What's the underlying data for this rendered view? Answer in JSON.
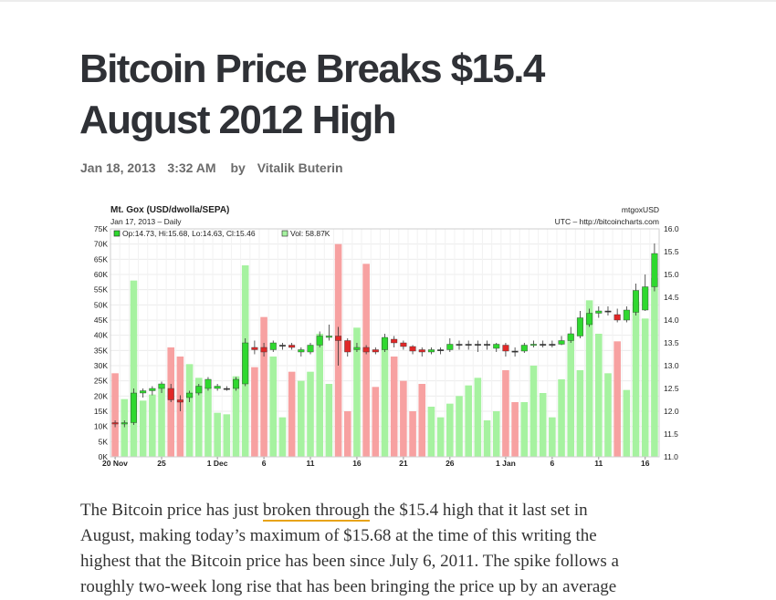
{
  "article": {
    "title_line1": "Bitcoin Price Breaks $15.4",
    "title_line2": "August 2012 High",
    "date": "Jan 18, 2013",
    "time": "3:32 AM",
    "byline_prefix": "by",
    "author": "Vitalik Buterin",
    "body": {
      "line1_before": "The Bitcoin price has just ",
      "line1_link": "broken through",
      "line1_after": " the $15.4 high that it last set in",
      "line2": "August, making today’s maximum of $15.68 at the time of this writing the",
      "line3": "highest that the Bitcoin price has been since July 6, 2011. The spike follows a",
      "line4": "roughly two-week long rise that has been bringing the price up by an average"
    }
  },
  "chart_data": {
    "type": "bar",
    "title": "Mt. Gox (USD/dwolla/SEPA)",
    "subtitle": "Jan 17, 2013 – Daily",
    "source_top": "mtgoxUSD",
    "source_bottom": "UTC – http://bitcoincharts.com",
    "legend_ohlc": "Op:14.73, Hi:15.68, Lo:14.63, Cl:15.46",
    "legend_vol": "Vol: 58.87K",
    "price_axis": {
      "ticks": [
        "11.0",
        "11.5",
        "12.0",
        "12.5",
        "13.0",
        "13.5",
        "14.0",
        "14.5",
        "15.0",
        "15.5",
        "16.0"
      ],
      "ylim": [
        11.0,
        16.0
      ]
    },
    "volume_axis": {
      "ticks": [
        "0K",
        "5K",
        "10K",
        "15K",
        "20K",
        "25K",
        "30K",
        "35K",
        "40K",
        "45K",
        "50K",
        "55K",
        "60K",
        "65K",
        "70K",
        "75K"
      ],
      "ylim": [
        0,
        75000
      ]
    },
    "x_ticks": [
      {
        "label": "20 Nov",
        "index": 0
      },
      {
        "label": "25",
        "index": 5
      },
      {
        "label": "1 Dec",
        "index": 11
      },
      {
        "label": "6",
        "index": 16
      },
      {
        "label": "11",
        "index": 21
      },
      {
        "label": "16",
        "index": 26
      },
      {
        "label": "21",
        "index": 31
      },
      {
        "label": "26",
        "index": 36
      },
      {
        "label": "1 Jan",
        "index": 42
      },
      {
        "label": "6",
        "index": 47
      },
      {
        "label": "11",
        "index": 52
      },
      {
        "label": "16",
        "index": 57
      }
    ],
    "volume": [
      27500,
      19000,
      58000,
      18500,
      20500,
      24000,
      36000,
      33000,
      30500,
      26000,
      23000,
      14500,
      14000,
      26500,
      63000,
      29500,
      46000,
      33000,
      13000,
      28000,
      25000,
      28000,
      40500,
      24000,
      70000,
      15000,
      42500,
      63500,
      23000,
      39000,
      33000,
      25000,
      15000,
      24000,
      16500,
      13000,
      17500,
      20000,
      23500,
      26000,
      12000,
      15000,
      28500,
      18000,
      18000,
      30000,
      21000,
      13000,
      25500,
      40000,
      28500,
      51500,
      40500,
      27500,
      38000,
      22000,
      51000,
      45500,
      58870
    ],
    "price_open": [
      11.75,
      11.72,
      11.75,
      12.4,
      12.45,
      12.5,
      12.5,
      12.25,
      12.3,
      12.4,
      12.5,
      12.5,
      12.5,
      12.5,
      12.6,
      13.4,
      13.4,
      13.35,
      13.45,
      13.45,
      13.3,
      13.3,
      13.45,
      13.62,
      13.65,
      13.55,
      13.35,
      13.4,
      13.35,
      13.35,
      13.58,
      13.5,
      13.42,
      13.35,
      13.3,
      13.35,
      13.35,
      13.47,
      13.47,
      13.47,
      13.47,
      13.38,
      13.45,
      13.32,
      13.32,
      13.45,
      13.47,
      13.47,
      13.47,
      13.55,
      13.65,
      13.9,
      14.15,
      14.2,
      14.12,
      14.0,
      14.17,
      14.22,
      14.73
    ],
    "price_close": [
      11.72,
      11.75,
      12.4,
      12.45,
      12.5,
      12.6,
      12.25,
      12.2,
      12.4,
      12.55,
      12.7,
      12.55,
      12.5,
      12.7,
      13.5,
      13.35,
      13.3,
      13.5,
      13.45,
      13.4,
      13.35,
      13.45,
      13.65,
      13.65,
      13.55,
      13.3,
      13.4,
      13.3,
      13.3,
      13.62,
      13.5,
      13.42,
      13.32,
      13.3,
      13.35,
      13.35,
      13.47,
      13.47,
      13.47,
      13.47,
      13.47,
      13.47,
      13.32,
      13.3,
      13.45,
      13.47,
      13.47,
      13.47,
      13.55,
      13.7,
      14.05,
      14.15,
      14.2,
      14.2,
      14.0,
      14.22,
      14.65,
      14.73,
      15.46
    ],
    "price_high": [
      11.8,
      11.8,
      12.5,
      12.5,
      12.55,
      12.65,
      12.6,
      12.35,
      12.45,
      12.6,
      12.75,
      12.6,
      12.55,
      12.75,
      13.6,
      13.55,
      13.5,
      13.55,
      13.5,
      13.5,
      13.4,
      13.5,
      13.75,
      13.9,
      13.85,
      13.6,
      13.5,
      13.45,
      13.4,
      13.7,
      13.65,
      13.55,
      13.45,
      13.4,
      13.4,
      13.4,
      13.6,
      13.55,
      13.55,
      13.55,
      13.55,
      13.5,
      13.5,
      13.4,
      13.5,
      13.55,
      13.55,
      13.55,
      13.65,
      13.85,
      14.2,
      14.25,
      14.3,
      14.3,
      14.25,
      14.3,
      14.8,
      15.0,
      15.68
    ],
    "price_low": [
      11.65,
      11.65,
      11.7,
      12.3,
      12.35,
      12.4,
      12.2,
      12.0,
      12.2,
      12.35,
      12.45,
      12.45,
      12.45,
      12.45,
      12.55,
      13.25,
      13.2,
      13.3,
      13.35,
      13.35,
      13.2,
      13.25,
      13.4,
      13.55,
      13.0,
      13.2,
      13.3,
      13.25,
      13.25,
      13.3,
      13.4,
      13.35,
      13.25,
      13.2,
      13.25,
      13.25,
      13.3,
      13.35,
      13.35,
      13.3,
      13.35,
      13.3,
      13.2,
      13.2,
      13.28,
      13.4,
      13.4,
      13.4,
      13.45,
      13.5,
      13.6,
      13.85,
      14.05,
      14.1,
      13.95,
      13.95,
      14.1,
      14.2,
      14.63
    ],
    "colors": {
      "vol_up": "#a6f2a0",
      "vol_down": "#f7a1a1",
      "candle_up": "#2fd82f",
      "candle_down": "#e02828",
      "doji": "#333333",
      "grid": "#ececec"
    }
  }
}
